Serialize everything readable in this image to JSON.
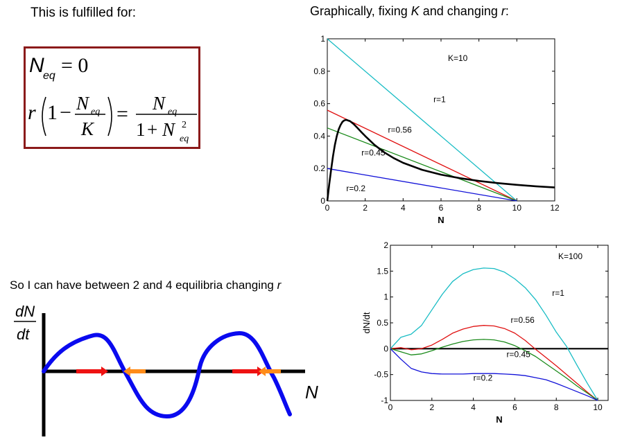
{
  "slide": {
    "heading_left": "This is fulfilled for:",
    "heading_right": "Graphically, fixing K and changing r:",
    "heading_right_parts": [
      "Graphically, fixing ",
      "K",
      " and changing ",
      "r",
      ":"
    ],
    "bottom_left_text": "So I can have between 2 and 4 equilibria changing r",
    "bottom_left_parts": [
      "So I can have between 2 and 4 equilibria changing ",
      "r"
    ]
  },
  "equation": {
    "line1": {
      "N": "N",
      "sub": "eq",
      "rhs": "= 0"
    },
    "line2": {
      "r": "r",
      "one": "1",
      "minus": "−",
      "num": "N",
      "num_sub": "eq",
      "den": "K",
      "equals": "=",
      "rnum": "N",
      "rnum_sub": "eq",
      "rden_one": "1",
      "rden_plus": "+",
      "rden_N": "N",
      "rden_sub": "eq",
      "rden_sup": "2"
    },
    "border_color": "#8b1a1a"
  },
  "sketch": {
    "ylabel_top": "dN",
    "ylabel_bottom": "dt",
    "xlabel": "N",
    "curve_color": "#0a0aef",
    "arrow_right_color": "#ee1111",
    "arrow_left_color": "#ff8c1a"
  },
  "chart_data": [
    {
      "type": "line",
      "annotation": "K=10",
      "xlabel": "N",
      "ylabel": "",
      "xlim": [
        0,
        12
      ],
      "ylim": [
        0,
        1
      ],
      "xticks": [
        0,
        2,
        4,
        6,
        8,
        10,
        12
      ],
      "yticks": [
        0,
        0.2,
        0.4,
        0.6,
        0.8,
        1
      ],
      "ytick_labels": [
        "0",
        "0.2",
        "0.4",
        "0.6",
        "0.8",
        "1"
      ],
      "series": [
        {
          "name": "r=1",
          "color": "#17bcc4",
          "kind": "line",
          "x": [
            0,
            10
          ],
          "values": [
            1,
            0
          ]
        },
        {
          "name": "r=0.56",
          "color": "#e01010",
          "kind": "line",
          "x": [
            0,
            10
          ],
          "values": [
            0.56,
            0
          ]
        },
        {
          "name": "r=0.45",
          "color": "#1a8a1a",
          "kind": "line",
          "x": [
            0,
            10
          ],
          "values": [
            0.45,
            0
          ]
        },
        {
          "name": "r=0.2",
          "color": "#1010d8",
          "kind": "line",
          "x": [
            0,
            10
          ],
          "values": [
            0.2,
            0
          ]
        },
        {
          "name": "",
          "color": "#000000",
          "kind": "curve",
          "x": [
            0,
            0.1,
            0.2,
            0.3,
            0.4,
            0.5,
            0.6,
            0.7,
            0.8,
            0.9,
            1.0,
            1.2,
            1.4,
            1.6,
            1.8,
            2.0,
            2.5,
            3,
            3.5,
            4,
            5,
            6,
            7,
            8,
            9,
            10,
            11,
            12
          ],
          "values": [
            0,
            0.099,
            0.192,
            0.275,
            0.345,
            0.4,
            0.441,
            0.468,
            0.488,
            0.497,
            0.5,
            0.492,
            0.473,
            0.449,
            0.424,
            0.4,
            0.345,
            0.3,
            0.264,
            0.235,
            0.192,
            0.162,
            0.14,
            0.123,
            0.11,
            0.099,
            0.09,
            0.083
          ]
        }
      ],
      "labels": [
        {
          "text": "r=1",
          "x": 5.6,
          "y": 0.61
        },
        {
          "text": "r=0.56",
          "x": 3.2,
          "y": 0.42
        },
        {
          "text": "r=0.45",
          "x": 1.8,
          "y": 0.28
        },
        {
          "text": "r=0.2",
          "x": 1.0,
          "y": 0.06
        }
      ]
    },
    {
      "type": "line",
      "annotation": "K=100",
      "xlabel": "N",
      "ylabel": "dN/dt",
      "xlim": [
        0,
        10.5
      ],
      "ylim": [
        -1,
        2
      ],
      "xticks": [
        0,
        2,
        4,
        6,
        8,
        10
      ],
      "yticks": [
        -1,
        -0.5,
        0,
        0.5,
        1,
        1.5,
        2
      ],
      "ytick_labels": [
        "-1",
        "-0.5",
        "0",
        "0.5",
        "1",
        "1.5",
        "2"
      ],
      "series": [
        {
          "name": "r=1",
          "color": "#17bcc4",
          "x": [
            0,
            0.5,
            1,
            1.5,
            2,
            2.5,
            3,
            3.5,
            4,
            4.5,
            5,
            5.5,
            6,
            6.5,
            7,
            7.5,
            8,
            8.5,
            9,
            9.5,
            10
          ],
          "values": [
            0,
            0.22,
            0.28,
            0.45,
            0.75,
            1.05,
            1.3,
            1.45,
            1.53,
            1.56,
            1.55,
            1.48,
            1.35,
            1.18,
            0.95,
            0.65,
            0.32,
            0.04,
            -0.32,
            -0.67,
            -1.0
          ]
        },
        {
          "name": "r=0.56",
          "color": "#e01010",
          "x": [
            0,
            0.5,
            1,
            1.5,
            2,
            2.5,
            3,
            3.5,
            4,
            4.5,
            5,
            5.5,
            6,
            6.5,
            7,
            7.5,
            8,
            8.5,
            9,
            9.5,
            10
          ],
          "values": [
            0,
            0.02,
            -0.02,
            0.0,
            0.07,
            0.18,
            0.3,
            0.38,
            0.43,
            0.45,
            0.44,
            0.39,
            0.3,
            0.16,
            -0.01,
            -0.17,
            -0.33,
            -0.5,
            -0.67,
            -0.84,
            -1.0
          ]
        },
        {
          "name": "r=0.45",
          "color": "#1a8a1a",
          "x": [
            0,
            0.5,
            1,
            1.5,
            2,
            2.5,
            3,
            3.5,
            4,
            4.5,
            5,
            5.5,
            6,
            6.5,
            7,
            7.5,
            8,
            8.5,
            9,
            9.5,
            10
          ],
          "values": [
            0,
            -0.06,
            -0.12,
            -0.1,
            -0.04,
            0.03,
            0.09,
            0.14,
            0.17,
            0.18,
            0.17,
            0.13,
            0.06,
            -0.04,
            -0.15,
            -0.29,
            -0.43,
            -0.57,
            -0.72,
            -0.86,
            -1.0
          ]
        },
        {
          "name": "r=0.2",
          "color": "#1010d8",
          "x": [
            0,
            0.5,
            1,
            1.5,
            2,
            2.5,
            3,
            3.5,
            4,
            4.5,
            5,
            5.5,
            6,
            6.5,
            7,
            7.5,
            8,
            8.5,
            9,
            9.5,
            10
          ],
          "values": [
            0,
            -0.2,
            -0.38,
            -0.45,
            -0.48,
            -0.49,
            -0.49,
            -0.49,
            -0.48,
            -0.48,
            -0.48,
            -0.49,
            -0.5,
            -0.52,
            -0.56,
            -0.6,
            -0.67,
            -0.75,
            -0.83,
            -0.91,
            -1.0
          ]
        }
      ],
      "labels": [
        {
          "text": "r=1",
          "x": 7.8,
          "y": 1.02
        },
        {
          "text": "r=0.56",
          "x": 5.8,
          "y": 0.5
        },
        {
          "text": "r=0.45",
          "x": 5.6,
          "y": -0.16
        },
        {
          "text": "r=0.2",
          "x": 4.0,
          "y": -0.62
        }
      ]
    }
  ]
}
